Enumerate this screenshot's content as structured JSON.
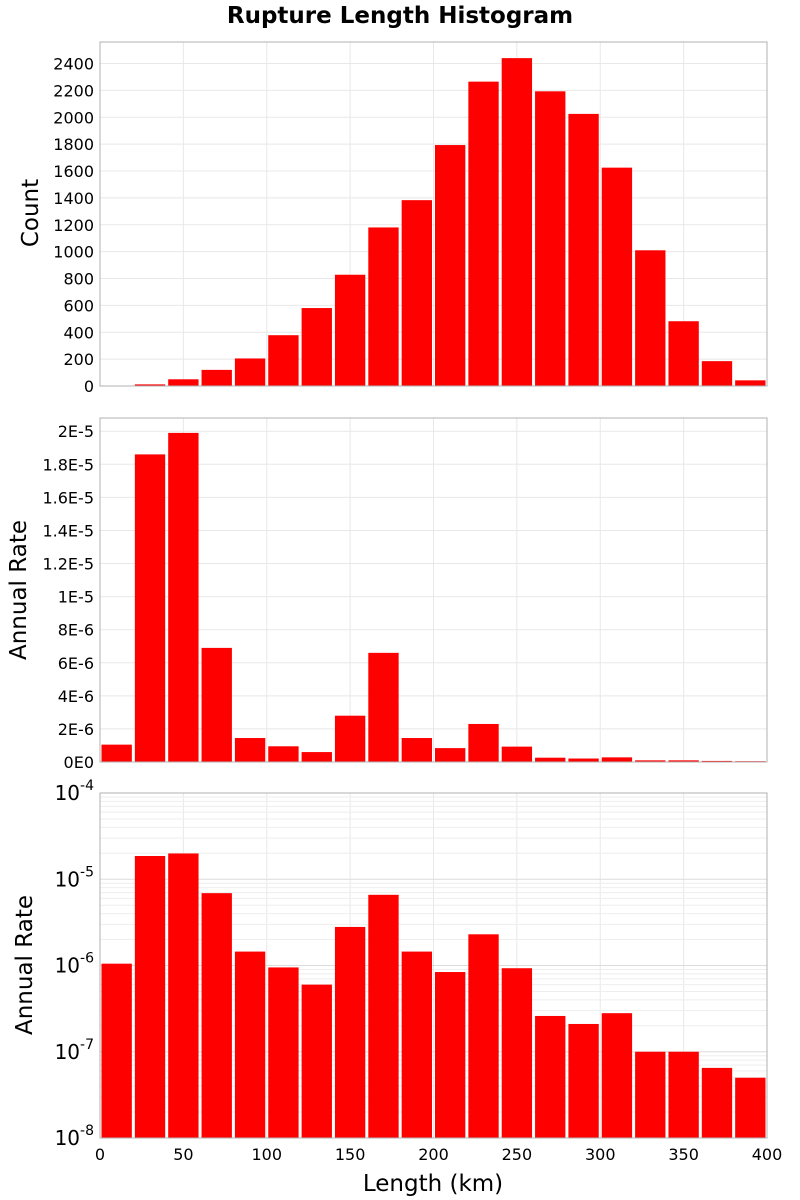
{
  "title": "Rupture Length Histogram",
  "xlabel": "Length (km)",
  "colors": {
    "bar": "#ff0000",
    "grid": "#e8e8e8",
    "frame": "#b0b0b0"
  },
  "chart_data": [
    {
      "type": "bar",
      "ylabel": "Count",
      "xlim": [
        0,
        400
      ],
      "ylim": [
        0,
        2560
      ],
      "yscale": "linear",
      "grid": true,
      "x_ticks": [
        0,
        50,
        100,
        150,
        200,
        250,
        300,
        350,
        400
      ],
      "x_tick_labels_visible": false,
      "y_ticks": [
        0,
        200,
        400,
        600,
        800,
        1000,
        1200,
        1400,
        1600,
        1800,
        2000,
        2200,
        2400
      ],
      "y_tick_labels": [
        "0",
        "200",
        "400",
        "600",
        "800",
        "1000",
        "1200",
        "1400",
        "1600",
        "1800",
        "2000",
        "2200",
        "2400"
      ],
      "bin_width": 20,
      "x": [
        10,
        30,
        50,
        70,
        90,
        110,
        130,
        150,
        170,
        190,
        210,
        230,
        250,
        270,
        290,
        310,
        330,
        350,
        370,
        390
      ],
      "values": [
        3,
        12,
        50,
        120,
        205,
        378,
        580,
        828,
        1180,
        1383,
        1793,
        2265,
        2440,
        2193,
        2025,
        1625,
        1010,
        482,
        185,
        42
      ]
    },
    {
      "type": "bar",
      "ylabel": "Annual Rate",
      "xlim": [
        0,
        400
      ],
      "ylim": [
        0,
        2.08e-05
      ],
      "yscale": "linear",
      "grid": true,
      "x_ticks": [
        0,
        50,
        100,
        150,
        200,
        250,
        300,
        350,
        400
      ],
      "x_tick_labels_visible": false,
      "y_ticks": [
        0,
        2e-06,
        4e-06,
        6e-06,
        8e-06,
        1e-05,
        1.2e-05,
        1.4e-05,
        1.6e-05,
        1.8e-05,
        2e-05
      ],
      "y_tick_labels": [
        "0E0",
        "2E-6",
        "4E-6",
        "6E-6",
        "8E-6",
        "1E-5",
        "1.2E-5",
        "1.4E-5",
        "1.6E-5",
        "1.8E-5",
        "2E-5"
      ],
      "bin_width": 20,
      "x": [
        10,
        30,
        50,
        70,
        90,
        110,
        130,
        150,
        170,
        190,
        210,
        230,
        250,
        270,
        290,
        310,
        330,
        350,
        370,
        390
      ],
      "values": [
        1.05e-06,
        1.86e-05,
        1.99e-05,
        6.9e-06,
        1.45e-06,
        9.5e-07,
        6e-07,
        2.8e-06,
        6.6e-06,
        1.45e-06,
        8.4e-07,
        2.3e-06,
        9.3e-07,
        2.6e-07,
        2.1e-07,
        2.8e-07,
        1e-07,
        1e-07,
        6.5e-08,
        5e-08
      ]
    },
    {
      "type": "bar",
      "ylabel": "Annual Rate",
      "xlim": [
        0,
        400
      ],
      "ylim": [
        1e-08,
        0.0001
      ],
      "yscale": "log",
      "grid": true,
      "x_ticks": [
        0,
        50,
        100,
        150,
        200,
        250,
        300,
        350,
        400
      ],
      "x_tick_labels": [
        "0",
        "50",
        "100",
        "150",
        "200",
        "250",
        "300",
        "350",
        "400"
      ],
      "x_tick_labels_visible": true,
      "y_decade_exponents": [
        -8,
        -7,
        -6,
        -5,
        -4
      ],
      "y_decade_base": "10",
      "bin_width": 20,
      "x": [
        10,
        30,
        50,
        70,
        90,
        110,
        130,
        150,
        170,
        190,
        210,
        230,
        250,
        270,
        290,
        310,
        330,
        350,
        370,
        390
      ],
      "values": [
        1.05e-06,
        1.86e-05,
        1.99e-05,
        6.9e-06,
        1.45e-06,
        9.5e-07,
        6e-07,
        2.8e-06,
        6.6e-06,
        1.45e-06,
        8.4e-07,
        2.3e-06,
        9.3e-07,
        2.6e-07,
        2.1e-07,
        2.8e-07,
        1e-07,
        1e-07,
        6.5e-08,
        5e-08
      ]
    }
  ]
}
